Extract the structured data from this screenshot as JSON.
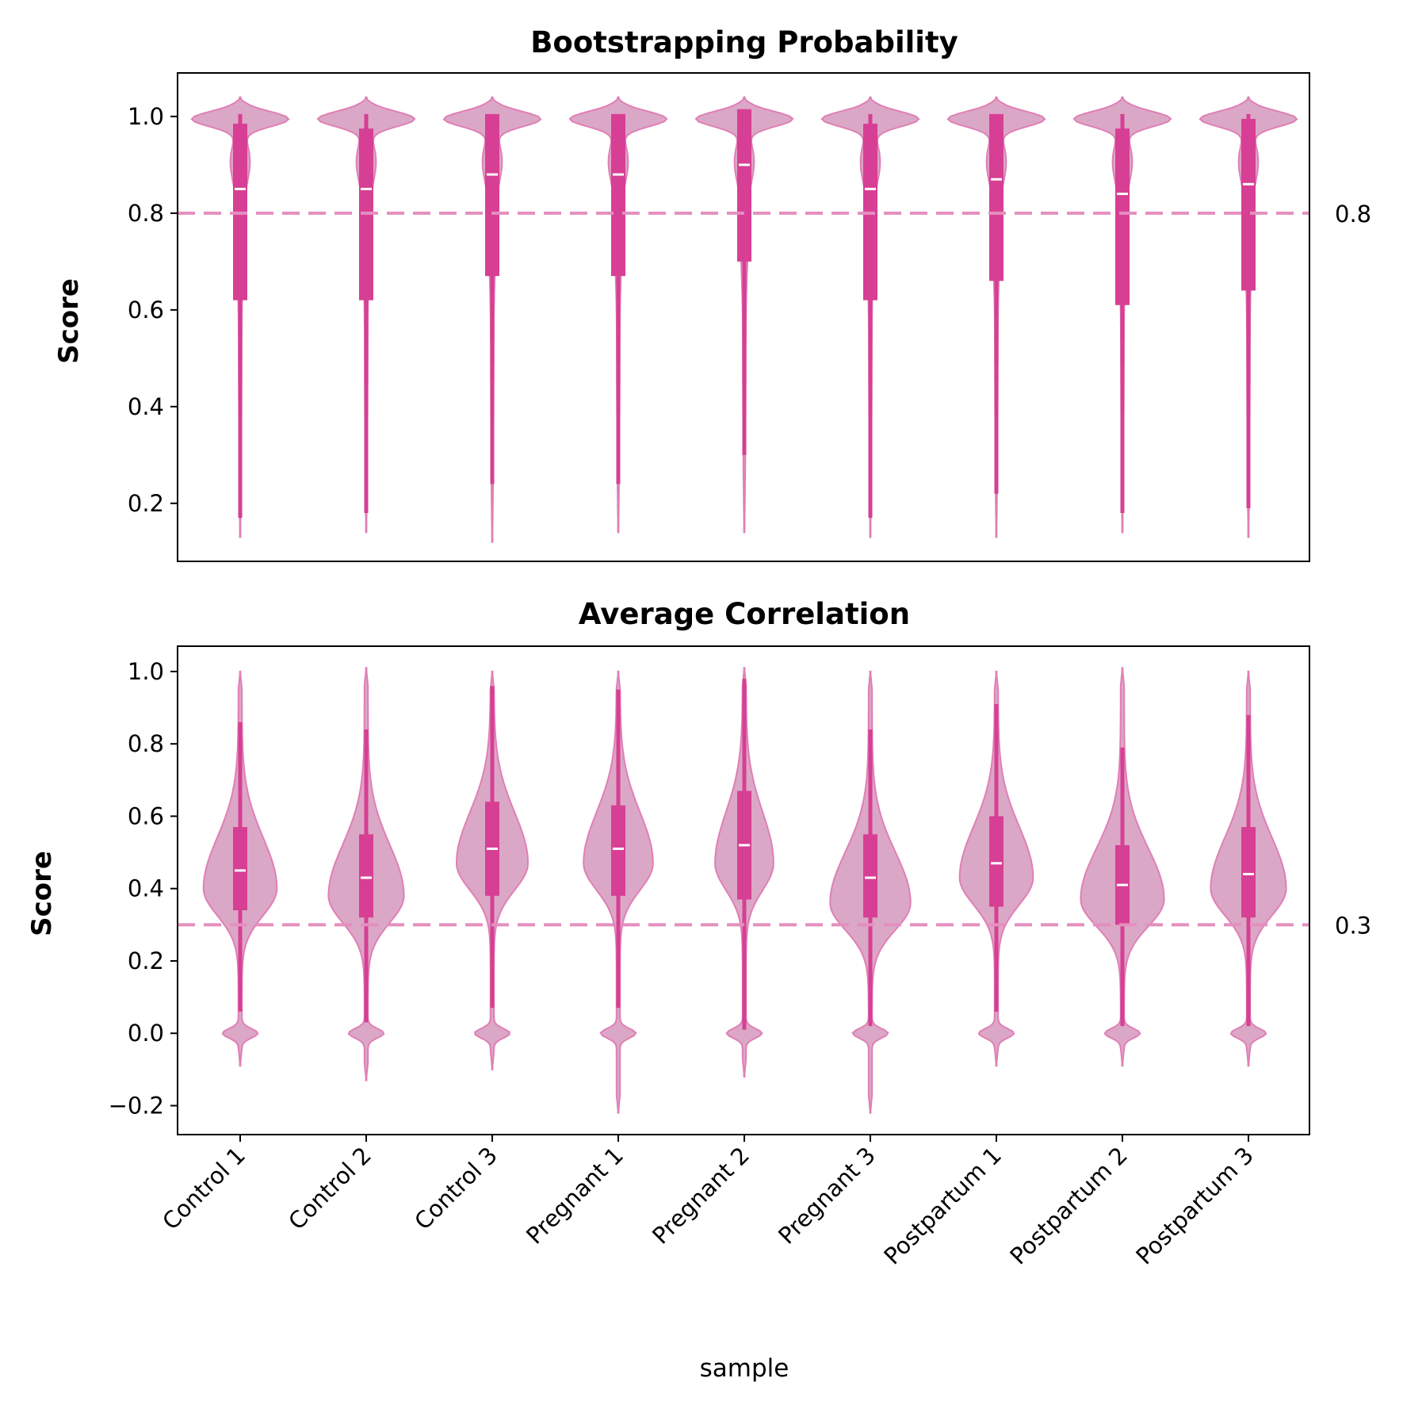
{
  "chart_data": [
    {
      "type": "violin",
      "title": "Bootstrapping Probability",
      "ylabel": "Score",
      "xlabel": "",
      "ylim": [
        0.08,
        1.09
      ],
      "yticks": [
        0.2,
        0.4,
        0.6,
        0.8,
        1.0
      ],
      "ytick_labels": [
        "0.2",
        "0.4",
        "0.6",
        "0.8",
        "1.0"
      ],
      "reference_line": {
        "value": 0.8,
        "label": "0.8",
        "style": "dashed"
      },
      "categories": [
        "Control 1",
        "Control 2",
        "Control 3",
        "Pregnant 1",
        "Pregnant 2",
        "Pregnant 3",
        "Postpartum 1",
        "Postpartum 2",
        "Postpartum 3"
      ],
      "violins": [
        {
          "min": 0.13,
          "max": 1.04,
          "q1": 0.62,
          "median": 0.85,
          "q3": 0.985,
          "whisker_low": 0.17,
          "whisker_high": 1.005
        },
        {
          "min": 0.14,
          "max": 1.04,
          "q1": 0.62,
          "median": 0.85,
          "q3": 0.975,
          "whisker_low": 0.18,
          "whisker_high": 1.005
        },
        {
          "min": 0.12,
          "max": 1.04,
          "q1": 0.67,
          "median": 0.88,
          "q3": 1.005,
          "whisker_low": 0.24,
          "whisker_high": 1.005
        },
        {
          "min": 0.14,
          "max": 1.04,
          "q1": 0.67,
          "median": 0.88,
          "q3": 1.005,
          "whisker_low": 0.24,
          "whisker_high": 1.005
        },
        {
          "min": 0.14,
          "max": 1.04,
          "q1": 0.7,
          "median": 0.9,
          "q3": 1.015,
          "whisker_low": 0.3,
          "whisker_high": 1.015
        },
        {
          "min": 0.13,
          "max": 1.04,
          "q1": 0.62,
          "median": 0.85,
          "q3": 0.985,
          "whisker_low": 0.17,
          "whisker_high": 1.005
        },
        {
          "min": 0.13,
          "max": 1.04,
          "q1": 0.66,
          "median": 0.87,
          "q3": 1.005,
          "whisker_low": 0.22,
          "whisker_high": 1.005
        },
        {
          "min": 0.14,
          "max": 1.04,
          "q1": 0.61,
          "median": 0.84,
          "q3": 0.975,
          "whisker_low": 0.18,
          "whisker_high": 1.005
        },
        {
          "min": 0.13,
          "max": 1.04,
          "q1": 0.64,
          "median": 0.86,
          "q3": 0.995,
          "whisker_low": 0.19,
          "whisker_high": 1.005
        }
      ],
      "grid": false,
      "legend": "none"
    },
    {
      "type": "violin",
      "title": "Average Correlation",
      "ylabel": "Score",
      "xlabel": "sample",
      "ylim": [
        -0.28,
        1.07
      ],
      "yticks": [
        -0.2,
        0.0,
        0.2,
        0.4,
        0.6,
        0.8,
        1.0
      ],
      "ytick_labels": [
        "−0.2",
        "0.0",
        "0.2",
        "0.4",
        "0.6",
        "0.8",
        "1.0"
      ],
      "reference_line": {
        "value": 0.3,
        "label": "0.3",
        "style": "dashed"
      },
      "categories": [
        "Control 1",
        "Control 2",
        "Control 3",
        "Pregnant 1",
        "Pregnant 2",
        "Pregnant 3",
        "Postpartum 1",
        "Postpartum 2",
        "Postpartum 3"
      ],
      "violins": [
        {
          "min": -0.09,
          "max": 1.0,
          "q1": 0.34,
          "median": 0.45,
          "q3": 0.57,
          "whisker_low": 0.06,
          "whisker_high": 0.86,
          "mode": 0.4,
          "width": 0.7
        },
        {
          "min": -0.13,
          "max": 1.01,
          "q1": 0.32,
          "median": 0.43,
          "q3": 0.55,
          "whisker_low": 0.03,
          "whisker_high": 0.84,
          "mode": 0.38,
          "width": 0.72
        },
        {
          "min": -0.1,
          "max": 1.0,
          "q1": 0.38,
          "median": 0.51,
          "q3": 0.64,
          "whisker_low": 0.07,
          "whisker_high": 0.96,
          "mode": 0.47,
          "width": 0.68
        },
        {
          "min": -0.22,
          "max": 1.0,
          "q1": 0.38,
          "median": 0.51,
          "q3": 0.63,
          "whisker_low": 0.07,
          "whisker_high": 0.95,
          "mode": 0.47,
          "width": 0.66
        },
        {
          "min": -0.12,
          "max": 1.01,
          "q1": 0.37,
          "median": 0.52,
          "q3": 0.67,
          "whisker_low": 0.01,
          "whisker_high": 0.98,
          "mode": 0.47,
          "width": 0.55
        },
        {
          "min": -0.22,
          "max": 1.0,
          "q1": 0.32,
          "median": 0.43,
          "q3": 0.55,
          "whisker_low": 0.02,
          "whisker_high": 0.84,
          "mode": 0.36,
          "width": 0.77
        },
        {
          "min": -0.09,
          "max": 1.0,
          "q1": 0.35,
          "median": 0.47,
          "q3": 0.6,
          "whisker_low": 0.06,
          "whisker_high": 0.91,
          "mode": 0.43,
          "width": 0.7
        },
        {
          "min": -0.09,
          "max": 1.01,
          "q1": 0.3,
          "median": 0.41,
          "q3": 0.52,
          "whisker_low": 0.02,
          "whisker_high": 0.79,
          "mode": 0.37,
          "width": 0.8
        },
        {
          "min": -0.09,
          "max": 1.0,
          "q1": 0.32,
          "median": 0.44,
          "q3": 0.57,
          "whisker_low": 0.02,
          "whisker_high": 0.88,
          "mode": 0.4,
          "width": 0.72
        }
      ],
      "grid": false,
      "legend": "none"
    }
  ],
  "colors": {
    "violin_fill": "#dba7c6",
    "violin_edge": "#e07fb5",
    "box": "#d63f94",
    "median": "#ffffff",
    "reference_line": "#e48fbf"
  }
}
